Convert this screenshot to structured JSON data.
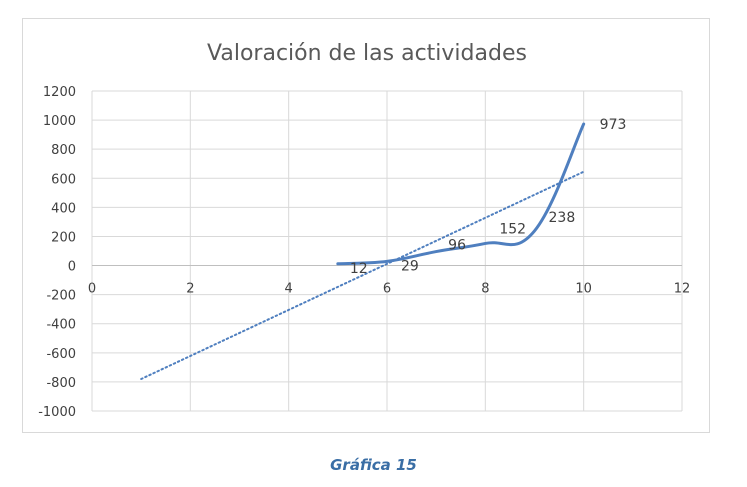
{
  "caption": "Gráfica 15",
  "colors": {
    "series": "#4f7fbf",
    "trendline": "#4f7fbf",
    "gridline": "#d9d9d9",
    "axis_text": "#404040",
    "title": "#595959",
    "caption": "#3a6ea5"
  },
  "chart_data": {
    "type": "scatter",
    "title": "Valoración de las actividades",
    "xlabel": "",
    "ylabel": "",
    "xlim": [
      0,
      12
    ],
    "ylim": [
      -1000,
      1200
    ],
    "x_ticks": [
      0,
      2,
      4,
      6,
      8,
      10,
      12
    ],
    "y_ticks": [
      -1000,
      -800,
      -600,
      -400,
      -200,
      0,
      200,
      400,
      600,
      800,
      1000,
      1200
    ],
    "grid": true,
    "legend": "none",
    "series": [
      {
        "style": "smooth-line",
        "x": [
          5,
          6,
          7,
          8,
          9,
          10
        ],
        "y": [
          12,
          29,
          96,
          152,
          238,
          973
        ],
        "labels": [
          "12",
          "29",
          "96",
          "152",
          "238",
          "973"
        ]
      }
    ],
    "trendline": {
      "type": "linear",
      "style": "dotted",
      "x": [
        1,
        10
      ],
      "y": [
        -780,
        645
      ]
    }
  }
}
